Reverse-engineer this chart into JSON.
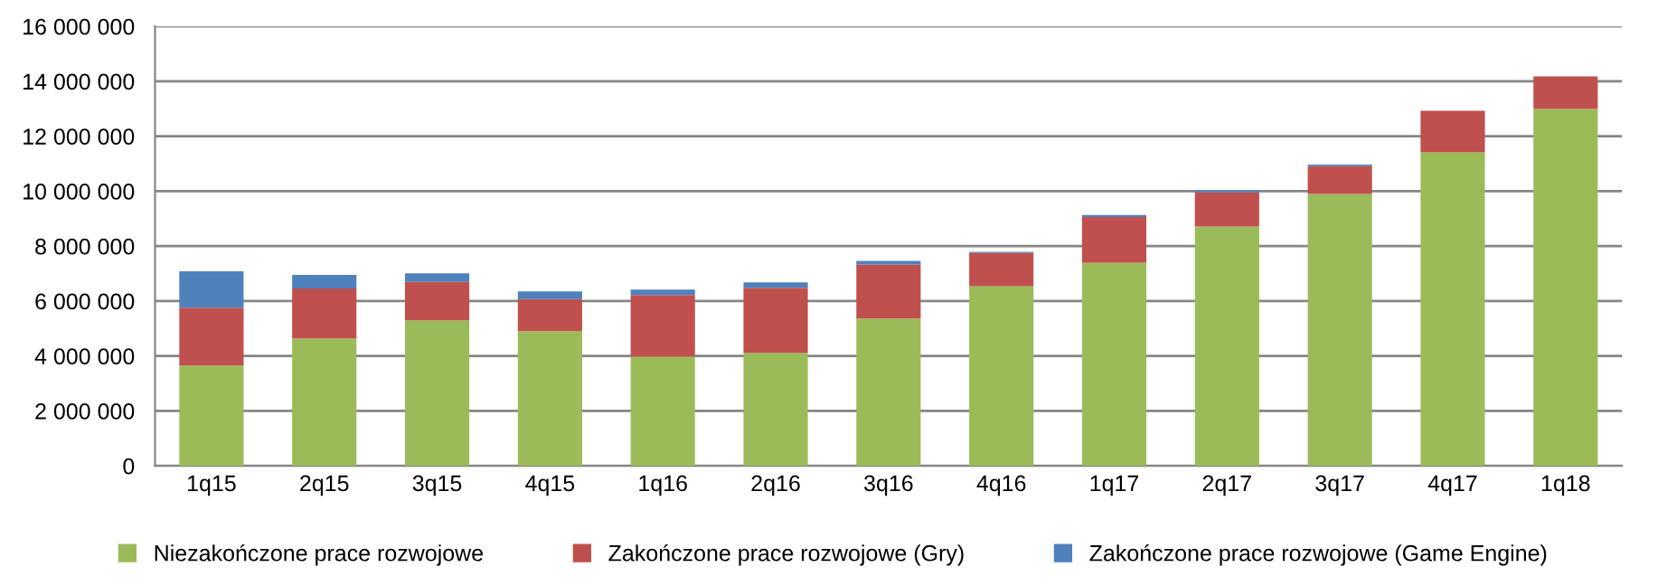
{
  "chart_data": {
    "type": "bar",
    "stacked": true,
    "categories": [
      "1q15",
      "2q15",
      "3q15",
      "4q15",
      "1q16",
      "2q16",
      "3q16",
      "4q16",
      "1q17",
      "2q17",
      "3q17",
      "4q17",
      "1q18"
    ],
    "series": [
      {
        "name": "Niezakończone prace rozwojowe",
        "color": "#9bbb59",
        "values": [
          3650000,
          4640000,
          5300000,
          4900000,
          3980000,
          4110000,
          5360000,
          6540000,
          7400000,
          8710000,
          9900000,
          11410000,
          12990000
        ]
      },
      {
        "name": "Zakończone prace rozwojowe (Gry)",
        "color": "#c0504d",
        "values": [
          2110000,
          1820000,
          1400000,
          1170000,
          2240000,
          2370000,
          1970000,
          1210000,
          1660000,
          1250000,
          1010000,
          1520000,
          1190000
        ]
      },
      {
        "name": "Zakończone prace rozwojowe (Game Engine)",
        "color": "#4f81bd",
        "values": [
          1320000,
          490000,
          310000,
          280000,
          200000,
          200000,
          130000,
          40000,
          70000,
          70000,
          60000,
          0,
          0
        ]
      }
    ],
    "ylim": [
      0,
      16000000
    ],
    "yticks": [
      0,
      {
        "value": 2000000,
        "label": "2 000 000"
      },
      {
        "value": 4000000,
        "label": "4 000 000"
      },
      {
        "value": 6000000,
        "label": "6 000 000"
      },
      {
        "value": 8000000,
        "label": "8 000 000"
      },
      {
        "value": 10000000,
        "label": "10 000 000"
      },
      {
        "value": 12000000,
        "label": "12 000 000"
      },
      {
        "value": 14000000,
        "label": "14 000 000"
      },
      {
        "value": 16000000,
        "label": "16 000 000"
      }
    ],
    "grid": "y",
    "legend": "bottom"
  }
}
